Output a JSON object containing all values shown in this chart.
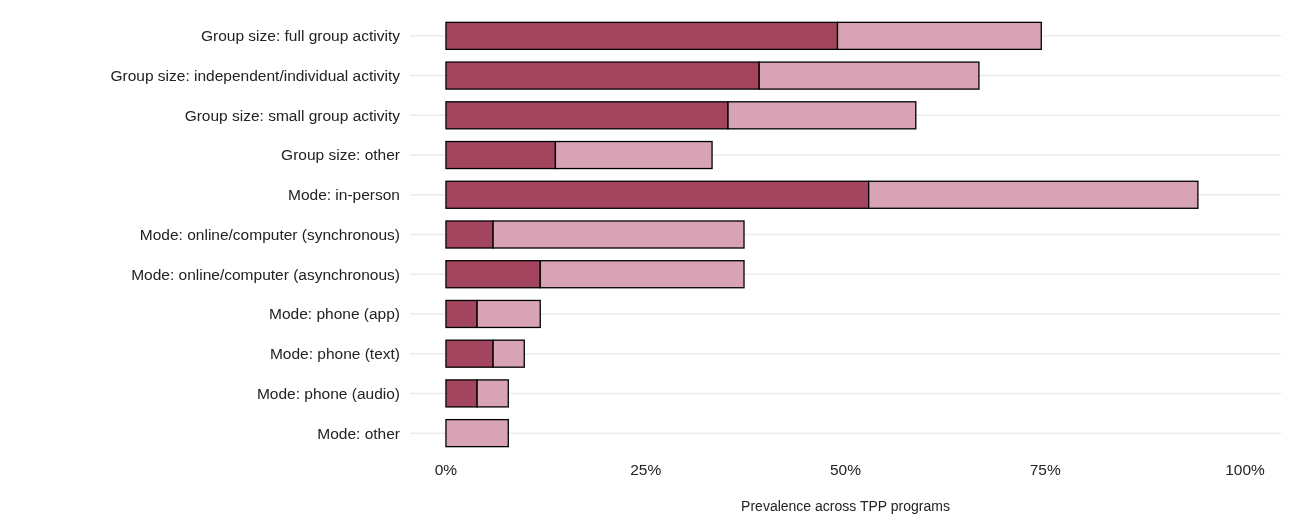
{
  "chart_data": {
    "type": "bar",
    "orientation": "horizontal",
    "stacked": true,
    "xlabel": "Prevalence across TPP programs",
    "categories": [
      "Group size: full group activity",
      "Group size: independent/individual activity",
      "Group size: small group activity",
      "Group size: other",
      "Mode: in-person",
      "Mode: online/computer (synchronous)",
      "Mode: online/computer (asynchronous)",
      "Mode: phone (app)",
      "Mode: phone (text)",
      "Mode: phone (audio)",
      "Mode: other"
    ],
    "series": [
      {
        "color": "#a4455f",
        "values": [
          49.0,
          39.2,
          35.3,
          13.7,
          52.9,
          5.9,
          11.8,
          3.9,
          5.9,
          3.9,
          0
        ]
      },
      {
        "color": "#d8a3b4",
        "values": [
          25.5,
          27.5,
          23.5,
          19.6,
          41.2,
          31.4,
          25.5,
          7.9,
          3.9,
          3.9,
          7.8
        ]
      }
    ],
    "xlim": [
      -4.5,
      104.5
    ],
    "xticks": [
      {
        "value": 0,
        "label": "0%"
      },
      {
        "value": 25,
        "label": "25%"
      },
      {
        "value": 50,
        "label": "50%"
      },
      {
        "value": 75,
        "label": "75%"
      },
      {
        "value": 100,
        "label": "100%"
      }
    ],
    "grid": "y"
  }
}
